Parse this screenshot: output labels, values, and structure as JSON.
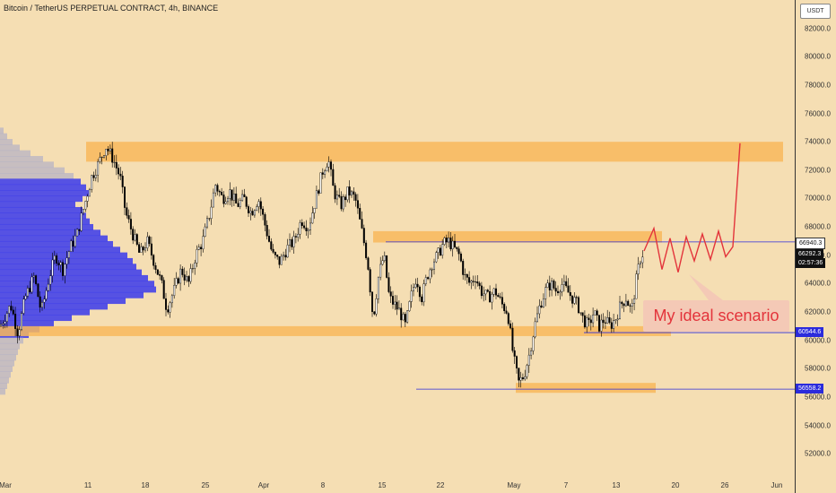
{
  "header": {
    "title": "Bitcoin / TetherUS PERPETUAL CONTRACT, 4h, BINANCE"
  },
  "axis": {
    "currency": "USDT"
  },
  "annotation": {
    "text": "My ideal scenario"
  },
  "price_tags": {
    "upper_line": "66940.3",
    "last_price": "66292.3",
    "countdown": "02:57:36",
    "support": "60544.6",
    "low_line": "56558.2"
  },
  "colors": {
    "background": "#f5deb3",
    "zone": "#f8b95c",
    "volume_profile": "#3a3aeb",
    "projection": "#e3343b",
    "level_line": "#2b2bdc",
    "candle": "#000000"
  },
  "chart_data": {
    "type": "candlestick",
    "title": "Bitcoin / TetherUS PERPETUAL CONTRACT, 4h, BINANCE",
    "ylim": [
      50500,
      84000
    ],
    "y_ticks": [
      "82000.0",
      "80000.0",
      "78000.0",
      "76000.0",
      "74000.0",
      "72000.0",
      "70000.0",
      "68000.0",
      "66000.0",
      "64000.0",
      "62000.0",
      "60000.0",
      "58000.0",
      "56000.0",
      "54000.0",
      "52000.0"
    ],
    "x_ticks": [
      "Mar",
      "11",
      "18",
      "25",
      "Apr",
      "8",
      "15",
      "22",
      "May",
      "7",
      "13",
      "20",
      "26",
      "Jun"
    ],
    "zones": [
      {
        "from": 72600,
        "to": 74000
      },
      {
        "from": 66900,
        "to": 67700
      },
      {
        "from": 60300,
        "to": 61000
      },
      {
        "from": 56300,
        "to": 57000
      }
    ],
    "levels": [
      66940.3,
      60544.6,
      56558.2
    ],
    "price_path": [
      [
        0,
        61000
      ],
      [
        12,
        62500
      ],
      [
        20,
        60500
      ],
      [
        28,
        63000
      ],
      [
        38,
        64500
      ],
      [
        46,
        62000
      ],
      [
        55,
        64500
      ],
      [
        62,
        66000
      ],
      [
        70,
        65000
      ],
      [
        78,
        66500
      ],
      [
        86,
        67500
      ],
      [
        94,
        69500
      ],
      [
        102,
        71500
      ],
      [
        110,
        72500
      ],
      [
        118,
        73700
      ],
      [
        126,
        72800
      ],
      [
        134,
        71500
      ],
      [
        140,
        69000
      ],
      [
        148,
        67500
      ],
      [
        156,
        66000
      ],
      [
        164,
        67000
      ],
      [
        172,
        65500
      ],
      [
        180,
        64000
      ],
      [
        186,
        62200
      ],
      [
        194,
        63500
      ],
      [
        202,
        65000
      ],
      [
        210,
        64000
      ],
      [
        218,
        66000
      ],
      [
        226,
        67000
      ],
      [
        234,
        69000
      ],
      [
        240,
        71000
      ],
      [
        248,
        70000
      ],
      [
        256,
        70500
      ],
      [
        264,
        69500
      ],
      [
        272,
        70000
      ],
      [
        280,
        69000
      ],
      [
        288,
        70000
      ],
      [
        296,
        68000
      ],
      [
        304,
        66000
      ],
      [
        312,
        65500
      ],
      [
        320,
        66500
      ],
      [
        328,
        67000
      ],
      [
        336,
        68500
      ],
      [
        344,
        68000
      ],
      [
        352,
        70000
      ],
      [
        360,
        72000
      ],
      [
        366,
        72800
      ],
      [
        372,
        70500
      ],
      [
        380,
        69500
      ],
      [
        388,
        70500
      ],
      [
        396,
        70000
      ],
      [
        404,
        67500
      ],
      [
        410,
        65500
      ],
      [
        416,
        61500
      ],
      [
        422,
        64500
      ],
      [
        428,
        66000
      ],
      [
        434,
        63000
      ],
      [
        440,
        62500
      ],
      [
        446,
        62000
      ],
      [
        452,
        61000
      ],
      [
        458,
        63000
      ],
      [
        464,
        64500
      ],
      [
        470,
        63000
      ],
      [
        476,
        64500
      ],
      [
        482,
        65500
      ],
      [
        488,
        66000
      ],
      [
        494,
        66800
      ],
      [
        500,
        67000
      ],
      [
        506,
        66500
      ],
      [
        512,
        66000
      ],
      [
        518,
        64500
      ],
      [
        524,
        64000
      ],
      [
        530,
        64500
      ],
      [
        536,
        63500
      ],
      [
        544,
        63000
      ],
      [
        552,
        63500
      ],
      [
        560,
        62500
      ],
      [
        566,
        62000
      ],
      [
        572,
        59000
      ],
      [
        578,
        57000
      ],
      [
        584,
        57500
      ],
      [
        590,
        59000
      ],
      [
        596,
        61000
      ],
      [
        602,
        62500
      ],
      [
        608,
        63500
      ],
      [
        614,
        64000
      ],
      [
        620,
        63500
      ],
      [
        626,
        64000
      ],
      [
        632,
        63500
      ],
      [
        638,
        63000
      ],
      [
        644,
        62500
      ],
      [
        650,
        61500
      ],
      [
        656,
        61000
      ],
      [
        662,
        62000
      ],
      [
        668,
        61000
      ],
      [
        674,
        61500
      ],
      [
        680,
        61000
      ],
      [
        686,
        61500
      ],
      [
        692,
        62500
      ],
      [
        698,
        63000
      ],
      [
        704,
        62000
      ],
      [
        710,
        64500
      ],
      [
        714,
        65800
      ],
      [
        718,
        66300
      ]
    ],
    "projection": [
      [
        718,
        66300
      ],
      [
        729,
        67900
      ],
      [
        738,
        65000
      ],
      [
        747,
        67200
      ],
      [
        756,
        64800
      ],
      [
        765,
        67300
      ],
      [
        774,
        65600
      ],
      [
        783,
        67500
      ],
      [
        792,
        65700
      ],
      [
        801,
        67700
      ],
      [
        809,
        65900
      ],
      [
        817,
        66600
      ],
      [
        825,
        73900
      ]
    ],
    "volume_profile": [
      [
        74800,
        4
      ],
      [
        74400,
        8
      ],
      [
        74000,
        14
      ],
      [
        73600,
        22
      ],
      [
        73200,
        34
      ],
      [
        72800,
        48
      ],
      [
        72400,
        60
      ],
      [
        72000,
        72
      ],
      [
        71600,
        82
      ],
      [
        71200,
        90
      ],
      [
        70800,
        96
      ],
      [
        70400,
        100
      ],
      [
        70000,
        92
      ],
      [
        69600,
        84
      ],
      [
        69200,
        92
      ],
      [
        68800,
        96
      ],
      [
        68400,
        100
      ],
      [
        68000,
        104
      ],
      [
        67600,
        112
      ],
      [
        67200,
        120
      ],
      [
        66800,
        126
      ],
      [
        66400,
        134
      ],
      [
        66000,
        142
      ],
      [
        65600,
        148
      ],
      [
        65200,
        152
      ],
      [
        64800,
        158
      ],
      [
        64400,
        165
      ],
      [
        64000,
        172
      ],
      [
        63600,
        174
      ],
      [
        63200,
        160
      ],
      [
        62800,
        140
      ],
      [
        62400,
        120
      ],
      [
        62000,
        100
      ],
      [
        61600,
        80
      ],
      [
        61200,
        60
      ],
      [
        60800,
        44
      ],
      [
        60400,
        32
      ],
      [
        60000,
        26
      ],
      [
        59600,
        22
      ],
      [
        59200,
        20
      ],
      [
        58800,
        18
      ],
      [
        58400,
        16
      ],
      [
        58000,
        14
      ],
      [
        57600,
        12
      ],
      [
        57200,
        10
      ],
      [
        56800,
        8
      ],
      [
        56400,
        6
      ]
    ]
  }
}
